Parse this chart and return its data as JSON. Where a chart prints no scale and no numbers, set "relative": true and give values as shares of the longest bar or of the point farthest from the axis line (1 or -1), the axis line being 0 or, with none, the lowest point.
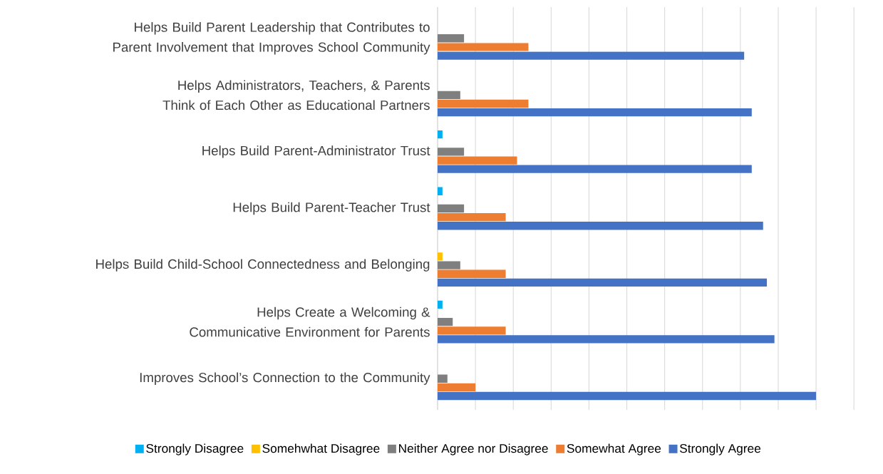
{
  "chart_data": {
    "type": "bar",
    "orientation": "horizontal",
    "relative": true,
    "grid": "x",
    "legend": "bottom",
    "categories": [
      "Helps Build Parent Leadership that Contributes to Parent Involvement  that Improves School Community",
      "Helps Administrators, Teachers, & Parents Think of Each Other as Educational Partners",
      "Helps Build Parent-Administrator Trust",
      "Helps Build Parent-Teacher Trust",
      "Helps Build Child-School Connectedness and Belonging",
      "Helps Create a Welcoming & Communicative Environment for Parents",
      "Improves School’s Connection to the Community"
    ],
    "series": [
      {
        "name": "Strongly Disagree",
        "color": "#00b0f0",
        "values": [
          null,
          null,
          0.013,
          0.013,
          null,
          0.013,
          null
        ]
      },
      {
        "name": "Somehwhat Disagree",
        "color": "#ffc000",
        "values": [
          null,
          null,
          null,
          null,
          0.013,
          null,
          null
        ]
      },
      {
        "name": "Neither Agree nor Disagree",
        "color": "#7f7f7f",
        "values": [
          0.07,
          0.06,
          0.07,
          0.07,
          0.06,
          0.04,
          0.026
        ]
      },
      {
        "name": "Somewhat Agree",
        "color": "#ed7d31",
        "values": [
          0.24,
          0.24,
          0.21,
          0.18,
          0.18,
          0.18,
          0.1
        ]
      },
      {
        "name": "Strongly Agree",
        "color": "#4472c4",
        "values": [
          0.81,
          0.83,
          0.83,
          0.86,
          0.87,
          0.89,
          1.0
        ]
      }
    ]
  }
}
